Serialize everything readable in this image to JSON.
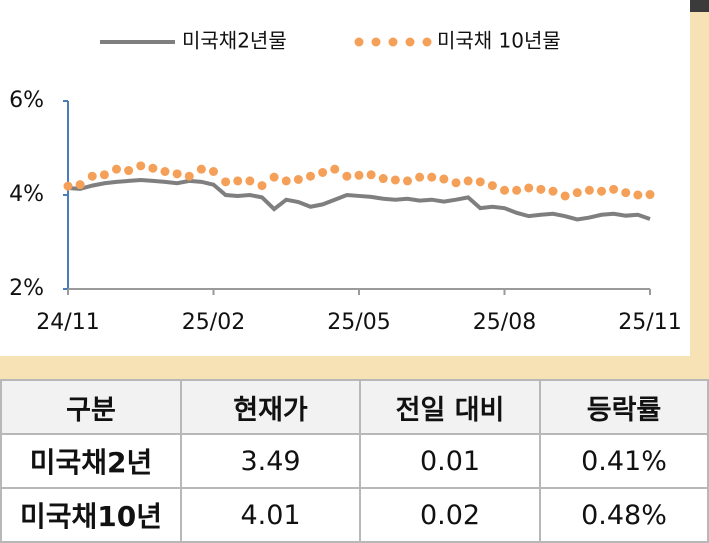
{
  "chart_data": {
    "type": "line",
    "categories": [
      "24/11",
      null,
      null,
      null,
      null,
      null,
      null,
      null,
      null,
      null,
      null,
      null,
      "25/02",
      null,
      null,
      null,
      null,
      null,
      null,
      null,
      null,
      null,
      null,
      null,
      "25/05",
      null,
      null,
      null,
      null,
      null,
      null,
      null,
      null,
      null,
      null,
      null,
      "25/08",
      null,
      null,
      null,
      null,
      null,
      null,
      null,
      null,
      null,
      null,
      null,
      "25/11"
    ],
    "series": [
      {
        "name": "미국채2년물",
        "color": "#7f7f7f",
        "style": "line",
        "values": [
          4.15,
          4.13,
          4.2,
          4.25,
          4.28,
          4.3,
          4.32,
          4.3,
          4.28,
          4.25,
          4.3,
          4.28,
          4.22,
          4.0,
          3.98,
          4.0,
          3.95,
          3.7,
          3.9,
          3.85,
          3.75,
          3.8,
          3.9,
          4.0,
          3.98,
          3.96,
          3.92,
          3.9,
          3.92,
          3.88,
          3.9,
          3.86,
          3.9,
          3.95,
          3.72,
          3.75,
          3.72,
          3.62,
          3.55,
          3.58,
          3.6,
          3.55,
          3.48,
          3.52,
          3.58,
          3.6,
          3.56,
          3.58,
          3.49
        ]
      },
      {
        "name": "미국채 10년물",
        "color": "#f4a058",
        "style": "dots",
        "values": [
          4.19,
          4.22,
          4.4,
          4.43,
          4.55,
          4.52,
          4.62,
          4.57,
          4.5,
          4.45,
          4.4,
          4.55,
          4.5,
          4.28,
          4.3,
          4.3,
          4.2,
          4.38,
          4.3,
          4.33,
          4.4,
          4.48,
          4.55,
          4.4,
          4.42,
          4.43,
          4.35,
          4.32,
          4.3,
          4.38,
          4.38,
          4.34,
          4.26,
          4.3,
          4.28,
          4.2,
          4.1,
          4.1,
          4.15,
          4.12,
          4.08,
          3.98,
          4.05,
          4.1,
          4.08,
          4.12,
          4.05,
          4.0,
          4.01
        ]
      }
    ],
    "ylim": [
      2,
      6
    ],
    "yticks": [
      {
        "value": 2,
        "label": "2%"
      },
      {
        "value": 4,
        "label": "4%"
      },
      {
        "value": 6,
        "label": "6%"
      }
    ],
    "legend": "top"
  },
  "table": {
    "headers": [
      "구분",
      "현재가",
      "전일 대비",
      "등락률"
    ],
    "rows": [
      [
        "미국채2년",
        "3.49",
        "0.01",
        "0.41%"
      ],
      [
        "미국채10년",
        "4.01",
        "0.02",
        "0.48%"
      ]
    ]
  }
}
